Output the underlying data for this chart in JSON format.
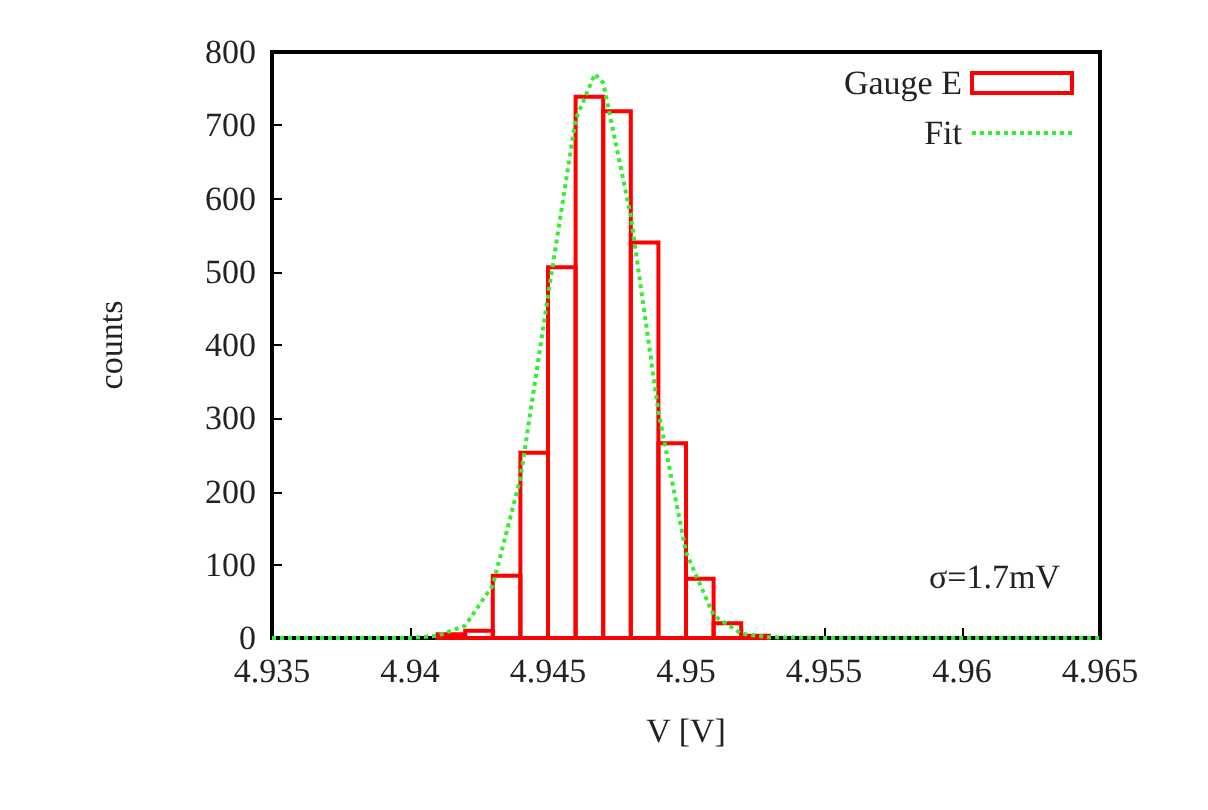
{
  "chart_data": {
    "type": "histogram",
    "xlabel": "V [V]",
    "ylabel": "counts",
    "xlim": [
      4.935,
      4.965
    ],
    "xticks": [
      4.935,
      4.94,
      4.945,
      4.95,
      4.955,
      4.96,
      4.965
    ],
    "ylim": [
      0,
      800
    ],
    "yticks": [
      0,
      100,
      200,
      300,
      400,
      500,
      600,
      700,
      800
    ],
    "legend": "top right",
    "grid": false,
    "annotations": [
      "σ=1.7mV"
    ],
    "series": [
      {
        "name": "Gauge E",
        "color": "#ff0000",
        "bins": [
          4.941,
          4.942,
          4.943,
          4.944,
          4.945,
          4.946,
          4.947,
          4.948,
          4.949,
          4.95,
          4.951,
          4.952,
          4.953
        ],
        "values": [
          5,
          10,
          85,
          253,
          506,
          739,
          719,
          540,
          266,
          81,
          20,
          3
        ]
      },
      {
        "type": "line",
        "name": "Fit",
        "color": "#33ee33",
        "line_style": "dotted",
        "x": [
          4.935,
          4.938,
          4.94,
          4.941,
          4.942,
          4.943,
          4.944,
          4.945,
          4.946,
          4.9467,
          4.947,
          4.948,
          4.949,
          4.95,
          4.951,
          4.952,
          4.953,
          4.955,
          4.958,
          4.965
        ],
        "values": [
          0,
          0,
          0,
          3,
          17,
          72,
          218,
          467,
          708,
          770,
          758,
          576,
          309,
          117,
          31,
          6,
          1,
          0,
          0,
          0
        ]
      }
    ]
  }
}
